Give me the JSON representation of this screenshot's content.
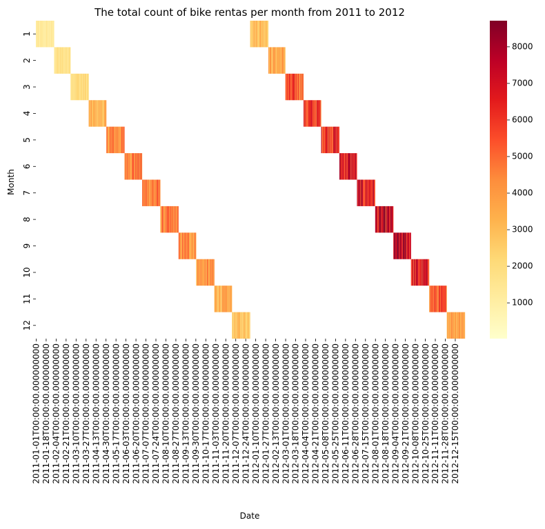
{
  "chart_data": {
    "type": "heatmap",
    "title": "The total count of bike rentas per month from 2011 to 2012",
    "xlabel": "Date",
    "ylabel": "Month",
    "rows": [
      "1",
      "2",
      "3",
      "4",
      "5",
      "6",
      "7",
      "8",
      "9",
      "10",
      "11",
      "12"
    ],
    "x_tick_labels": [
      "2011-01-01T00:00:00.000000000",
      "2011-01-18T00:00:00.000000000",
      "2011-02-04T00:00:00.000000000",
      "2011-02-21T00:00:00.000000000",
      "2011-03-10T00:00:00.000000000",
      "2011-03-27T00:00:00.000000000",
      "2011-04-13T00:00:00.000000000",
      "2011-04-30T00:00:00.000000000",
      "2011-05-17T00:00:00.000000000",
      "2011-06-03T00:00:00.000000000",
      "2011-06-20T00:00:00.000000000",
      "2011-07-07T00:00:00.000000000",
      "2011-07-24T00:00:00.000000000",
      "2011-08-10T00:00:00.000000000",
      "2011-08-27T00:00:00.000000000",
      "2011-09-13T00:00:00.000000000",
      "2011-09-30T00:00:00.000000000",
      "2011-10-17T00:00:00.000000000",
      "2011-11-03T00:00:00.000000000",
      "2011-11-20T00:00:00.000000000",
      "2011-12-07T00:00:00.000000000",
      "2011-12-24T00:00:00.000000000",
      "2012-01-10T00:00:00.000000000",
      "2012-01-27T00:00:00.000000000",
      "2012-02-13T00:00:00.000000000",
      "2012-03-01T00:00:00.000000000",
      "2012-03-18T00:00:00.000000000",
      "2012-04-04T00:00:00.000000000",
      "2012-04-21T00:00:00.000000000",
      "2012-05-08T00:00:00.000000000",
      "2012-05-25T00:00:00.000000000",
      "2012-06-11T00:00:00.000000000",
      "2012-06-28T00:00:00.000000000",
      "2012-07-15T00:00:00.000000000",
      "2012-08-01T00:00:00.000000000",
      "2012-08-18T00:00:00.000000000",
      "2012-09-04T00:00:00.000000000",
      "2012-09-21T00:00:00.000000000",
      "2012-10-08T00:00:00.000000000",
      "2012-10-25T00:00:00.000000000",
      "2012-11-11T00:00:00.000000000",
      "2012-11-28T00:00:00.000000000",
      "2012-12-15T00:00:00.000000000"
    ],
    "colorbar": {
      "min": 22,
      "max": 8714,
      "ticks": [
        1000,
        2000,
        3000,
        4000,
        5000,
        6000,
        7000,
        8000
      ],
      "colormap": "YlOrRd"
    },
    "monthly_values": [
      {
        "year": 2011,
        "month": 1,
        "avg_count": 1231
      },
      {
        "year": 2011,
        "month": 2,
        "avg_count": 1721
      },
      {
        "year": 2011,
        "month": 3,
        "avg_count": 2065
      },
      {
        "year": 2011,
        "month": 4,
        "avg_count": 3162
      },
      {
        "year": 2011,
        "month": 5,
        "avg_count": 4381
      },
      {
        "year": 2011,
        "month": 6,
        "avg_count": 4783
      },
      {
        "year": 2011,
        "month": 7,
        "avg_count": 4559
      },
      {
        "year": 2011,
        "month": 8,
        "avg_count": 4409
      },
      {
        "year": 2011,
        "month": 9,
        "avg_count": 4247
      },
      {
        "year": 2011,
        "month": 10,
        "avg_count": 3984
      },
      {
        "year": 2011,
        "month": 11,
        "avg_count": 3405
      },
      {
        "year": 2011,
        "month": 12,
        "avg_count": 2816
      },
      {
        "year": 2012,
        "month": 1,
        "avg_count": 3120
      },
      {
        "year": 2012,
        "month": 2,
        "avg_count": 3556
      },
      {
        "year": 2012,
        "month": 3,
        "avg_count": 5318
      },
      {
        "year": 2012,
        "month": 4,
        "avg_count": 5807
      },
      {
        "year": 2012,
        "month": 5,
        "avg_count": 6318
      },
      {
        "year": 2012,
        "month": 6,
        "avg_count": 6761
      },
      {
        "year": 2012,
        "month": 7,
        "avg_count": 6567
      },
      {
        "year": 2012,
        "month": 8,
        "avg_count": 6919
      },
      {
        "year": 2012,
        "month": 9,
        "avg_count": 7285
      },
      {
        "year": 2012,
        "month": 10,
        "avg_count": 6414
      },
      {
        "year": 2012,
        "month": 11,
        "avg_count": 5088
      },
      {
        "year": 2012,
        "month": 12,
        "avg_count": 3990
      }
    ]
  }
}
